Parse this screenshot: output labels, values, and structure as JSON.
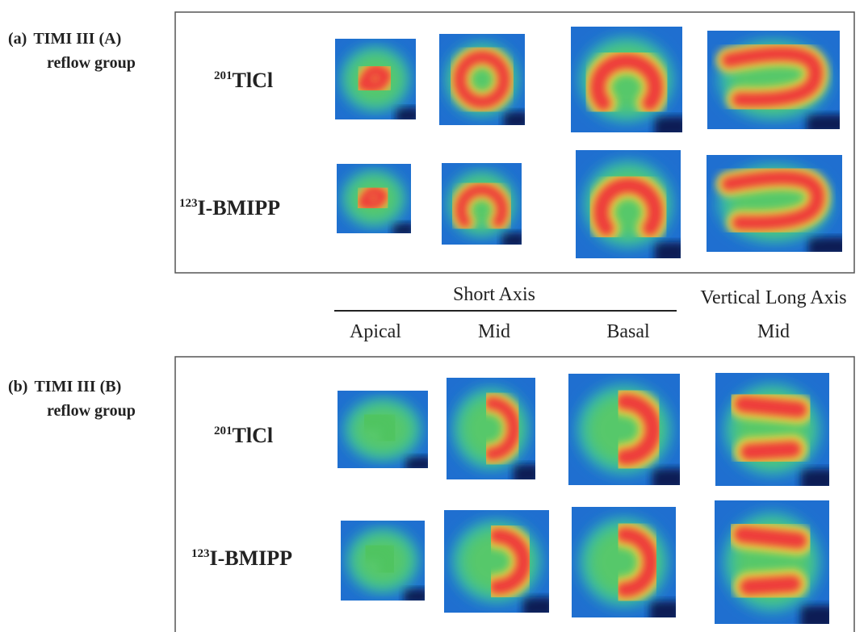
{
  "panels": [
    {
      "label": "(a)",
      "title": "TIMI III (A)",
      "subtitle": "reflow group",
      "rows": [
        {
          "isotope": "201",
          "tracer": "TlCl"
        },
        {
          "isotope": "123",
          "tracer": "I-BMIPP"
        }
      ]
    },
    {
      "label": "(b)",
      "title": "TIMI III (B)",
      "subtitle": "reflow group",
      "rows": [
        {
          "isotope": "201",
          "tracer": "TlCl"
        },
        {
          "isotope": "123",
          "tracer": "I-BMIPP"
        }
      ]
    }
  ],
  "axis_labels": {
    "short_axis": "Short Axis",
    "vertical_long_axis": "Vertical Long Axis",
    "columns": [
      "Apical",
      "Mid",
      "Basal",
      "Mid"
    ]
  }
}
